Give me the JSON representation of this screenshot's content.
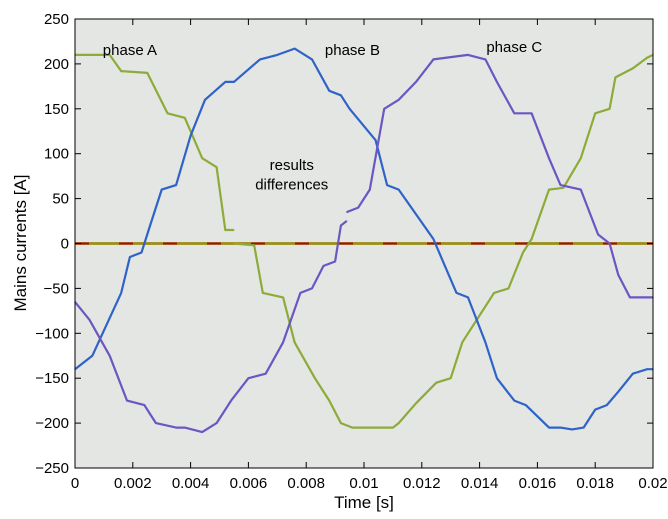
{
  "chart_data": {
    "type": "line",
    "title": "",
    "xlabel": "Time [s]",
    "ylabel": "Mains currents [A]",
    "xlim": [
      0,
      0.02
    ],
    "ylim": [
      -250,
      250
    ],
    "xticks": [
      0,
      0.002,
      0.004,
      0.006,
      0.008,
      0.01,
      0.012,
      0.014,
      0.016,
      0.018,
      0.02
    ],
    "xtick_labels": [
      "0",
      "0.002",
      "0.004",
      "0.006",
      "0.008",
      "0.01",
      "0.012",
      "0.014",
      "0.016",
      "0.018",
      "0.02"
    ],
    "yticks": [
      250,
      200,
      150,
      100,
      50,
      0,
      -50,
      -100,
      -150,
      -200,
      -250
    ],
    "ytick_labels": [
      "250",
      "200",
      "150",
      "100",
      "50",
      "0",
      "−50",
      "−100",
      "−150",
      "−200",
      "−250"
    ],
    "grid": false,
    "annotations": [
      {
        "text": "phase A",
        "x": 0.0019,
        "y": 210
      },
      {
        "text": "phase B",
        "x": 0.0096,
        "y": 210
      },
      {
        "text": "phase C",
        "x": 0.0152,
        "y": 213
      },
      {
        "text": "results",
        "x": 0.0075,
        "y": 82
      },
      {
        "text": "differences",
        "x": 0.0075,
        "y": 60
      }
    ],
    "series": [
      {
        "color": "#8cab38",
        "x": [
          0,
          0.0012,
          0.0016,
          0.0025,
          0.0032,
          0.0038,
          0.0044,
          0.0049,
          0.0052,
          0.0055
        ],
        "y": [
          210,
          210,
          192,
          190,
          145,
          140,
          95,
          85,
          15,
          15
        ]
      },
      {
        "color": "#8cab38",
        "x": [
          0.0055,
          0.0062,
          0.0065,
          0.0072,
          0.0076,
          0.0083,
          0.0088,
          0.0092,
          0.0096,
          0.011,
          0.0112,
          0.0118,
          0.0125,
          0.013,
          0.0134,
          0.0145,
          0.015,
          0.0155,
          0.0158,
          0.0164,
          0.0169,
          0.0175,
          0.018,
          0.0185,
          0.0187,
          0.0193,
          0.0198,
          0.02
        ],
        "y": [
          0,
          -2,
          -55,
          -60,
          -110,
          -150,
          -175,
          -200,
          -205,
          -205,
          -200,
          -178,
          -155,
          -150,
          -110,
          -55,
          -50,
          -10,
          5,
          60,
          62,
          95,
          145,
          150,
          185,
          195,
          207,
          210
        ]
      },
      {
        "color": "#2f63c7",
        "x": [
          0,
          0.0006,
          0.0016,
          0.0019,
          0.0023,
          0.0026,
          0.003,
          0.0035,
          0.004,
          0.0045,
          0.0052,
          0.0055,
          0.0064,
          0.007,
          0.0076,
          0.0082,
          0.0088,
          0.0092,
          0.0095,
          0.0104,
          0.0108,
          0.0112,
          0.0124,
          0.0128,
          0.0132,
          0.0136,
          0.0142,
          0.0146,
          0.0152,
          0.0156,
          0.0164,
          0.0168,
          0.0172,
          0.0176,
          0.018,
          0.0184,
          0.0188,
          0.0193,
          0.0198,
          0.02
        ],
        "y": [
          -140,
          -125,
          -55,
          -15,
          -10,
          20,
          60,
          65,
          120,
          160,
          180,
          180,
          205,
          210,
          217,
          205,
          170,
          165,
          150,
          115,
          65,
          60,
          5,
          -25,
          -55,
          -60,
          -110,
          -150,
          -175,
          -180,
          -205,
          -205,
          -207,
          -205,
          -185,
          -180,
          -165,
          -145,
          -140,
          -140
        ]
      },
      {
        "color": "#6b56c2",
        "x": [
          0,
          0.0005,
          0.0012,
          0.0018,
          0.0024,
          0.0028,
          0.0035,
          0.0038,
          0.0044,
          0.0049,
          0.0054,
          0.006,
          0.0066,
          0.0072,
          0.0078,
          0.0082,
          0.0086,
          0.009,
          0.0092,
          0.0094
        ],
        "y": [
          -65,
          -85,
          -125,
          -175,
          -180,
          -200,
          -205,
          -205,
          -210,
          -200,
          -175,
          -150,
          -145,
          -110,
          -55,
          -50,
          -25,
          -20,
          20,
          25
        ]
      },
      {
        "color": "#6b56c2",
        "x": [
          0.0094,
          0.0098,
          0.0102,
          0.0107,
          0.0112,
          0.0118,
          0.0124,
          0.0136,
          0.0142,
          0.0146,
          0.0152,
          0.0158,
          0.0164,
          0.0168,
          0.0175,
          0.0181,
          0.0185,
          0.0188,
          0.0192,
          0.0195,
          0.02
        ],
        "y": [
          35,
          40,
          60,
          150,
          160,
          180,
          205,
          210,
          205,
          180,
          145,
          145,
          95,
          65,
          60,
          10,
          0,
          -35,
          -60,
          -60,
          -60
        ]
      }
    ]
  }
}
